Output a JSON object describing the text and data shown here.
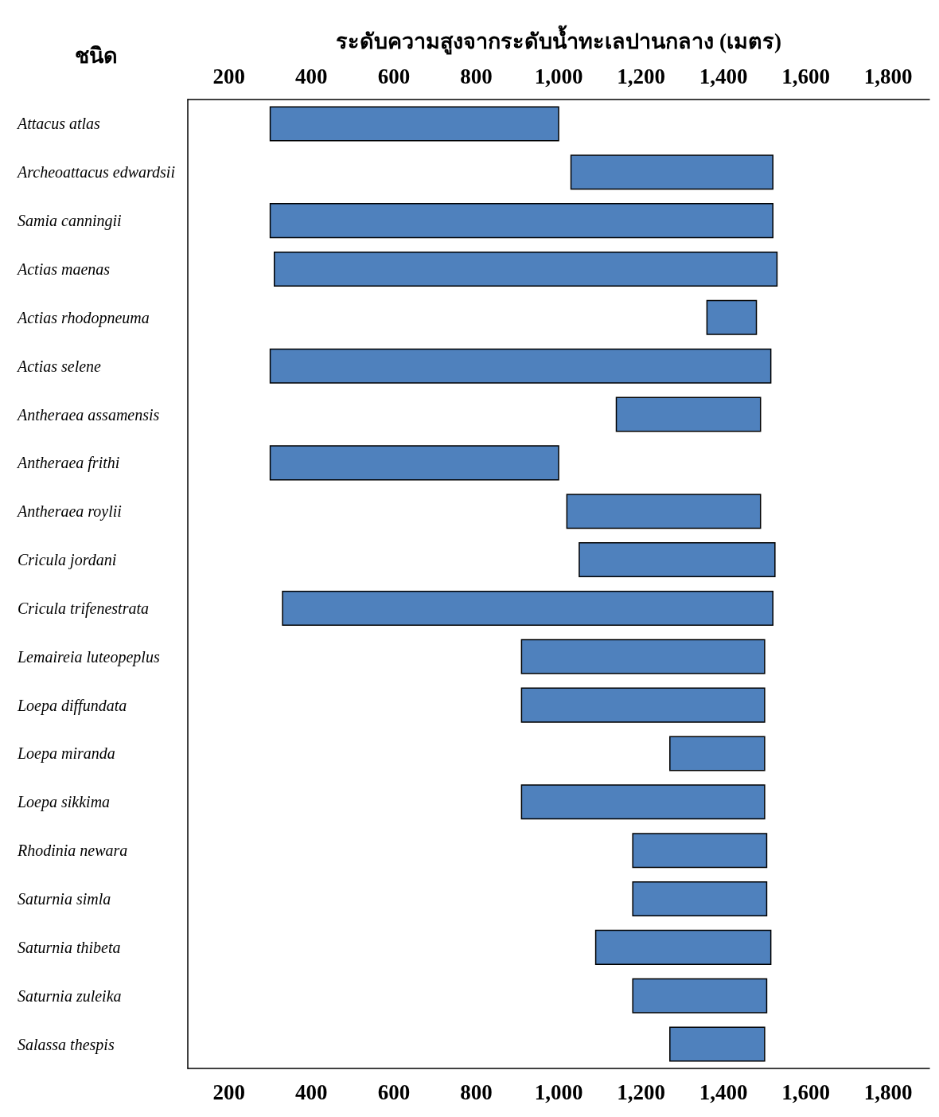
{
  "chart_data": {
    "type": "bar",
    "orientation": "horizontal",
    "xlabel": "ระดับความสูงจากระดับน้ำทะเลปานกลาง (เมตร)",
    "ylabel": "ชนิด",
    "categories": [
      "Attacus atlas",
      "Archeoattacus edwardsii",
      "Samia canningii",
      "Actias maenas",
      "Actias rhodopneuma",
      "Actias selene",
      "Antheraea assamensis",
      "Antheraea frithi",
      "Antheraea roylii",
      "Cricula jordani",
      "Cricula trifenestrata",
      "Lemaireia luteopeplus",
      "Loepa diffundata",
      "Loepa miranda",
      "Loepa sikkima",
      "Rhodinia newara",
      "Saturnia simla",
      "Saturnia thibeta",
      "Saturnia zuleika",
      "Salassa thespis"
    ],
    "base": [
      300,
      1030,
      300,
      310,
      1360,
      300,
      1140,
      300,
      1020,
      1050,
      330,
      910,
      910,
      1270,
      910,
      1180,
      1180,
      1090,
      1180,
      1270
    ],
    "values": [
      700,
      490,
      1220,
      1220,
      120,
      1215,
      350,
      700,
      470,
      475,
      1190,
      590,
      590,
      230,
      590,
      325,
      325,
      425,
      325,
      230
    ],
    "color": "#4f81bd",
    "xlim": [
      100,
      1900
    ],
    "xticks": [
      200,
      400,
      600,
      800,
      {
        "value": 1000,
        "label": "1,000"
      },
      {
        "value": 1200,
        "label": "1,200"
      },
      {
        "value": 1400,
        "label": "1,400"
      },
      {
        "value": 1600,
        "label": "1,600"
      },
      {
        "value": 1800,
        "label": "1,800"
      }
    ],
    "x2lim": [
      100,
      1900
    ],
    "x2ticks": [
      200,
      400,
      600,
      800,
      {
        "value": 1000,
        "label": "1,000"
      },
      {
        "value": 1200,
        "label": "1,200"
      },
      {
        "value": 1400,
        "label": "1,400"
      },
      {
        "value": 1600,
        "label": "1,600"
      },
      {
        "value": 1800,
        "label": "1,800"
      }
    ]
  }
}
